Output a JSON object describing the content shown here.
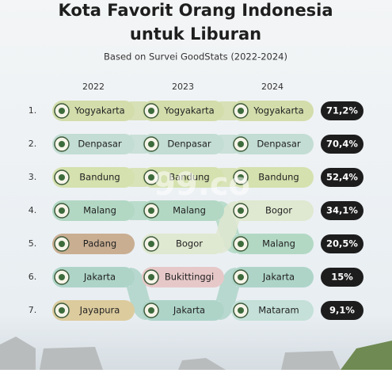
{
  "header": {
    "title_line1": "Kota Favorit Orang Indonesia",
    "title_line2": "untuk Liburan",
    "subtitle": "Based on Survei GoodStats (2022-2024)"
  },
  "years": [
    "2022",
    "2023",
    "2024"
  ],
  "rows": [
    {
      "rank": "1.",
      "cities": [
        "Yogyakarta",
        "Yogyakarta",
        "Yogyakarta"
      ],
      "share": "71,2%"
    },
    {
      "rank": "2.",
      "cities": [
        "Denpasar",
        "Denpasar",
        "Denpasar"
      ],
      "share": "70,4%"
    },
    {
      "rank": "3.",
      "cities": [
        "Bandung",
        "Bandung",
        "Bandung"
      ],
      "share": "52,4%"
    },
    {
      "rank": "4.",
      "cities": [
        "Malang",
        "Malang",
        "Bogor"
      ],
      "share": "34,1%"
    },
    {
      "rank": "5.",
      "cities": [
        "Padang",
        "Bogor",
        "Malang"
      ],
      "share": "20,5%"
    },
    {
      "rank": "6.",
      "cities": [
        "Jakarta",
        "Bukittinggi",
        "Jakarta"
      ],
      "share": "15%"
    },
    {
      "rank": "7.",
      "cities": [
        "Jayapura",
        "Jakarta",
        "Mataram"
      ],
      "share": "9,1%"
    }
  ],
  "city_colors": {
    "Yogyakarta": "#d2ddab",
    "Denpasar": "#c3ddd4",
    "Bandung": "#d5e1ae",
    "Malang": "#b2d8c4",
    "Padang": "#c9ae92",
    "Bogor": "#dfe8d0",
    "Jakarta": "#aed4c8",
    "Bukittinggi": "#e6c8c8",
    "Jayapura": "#dccb9d",
    "Mataram": "#c4e0d8"
  },
  "watermark": "99.co"
}
